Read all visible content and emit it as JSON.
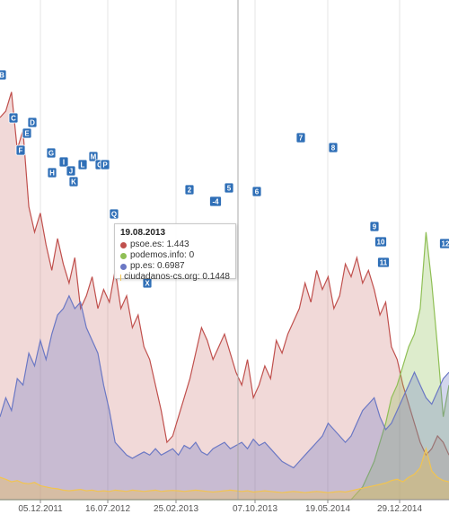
{
  "chart_data": {
    "type": "area",
    "title": "",
    "xlabel": "",
    "ylabel": "",
    "x_tick_labels": [
      "05.12.2011",
      "16.07.2012",
      "25.02.2013",
      "07.10.2013",
      "19.05.2014",
      "29.12.2014"
    ],
    "grid": "vertical",
    "crosshair_date": "19.08.2013",
    "series": [
      {
        "name": "psoe.es",
        "color": "#c0504d",
        "values": [
          6.0,
          6.1,
          6.4,
          5.5,
          5.8,
          4.6,
          4.2,
          4.5,
          4.0,
          3.6,
          4.1,
          3.7,
          3.4,
          3.8,
          3.0,
          3.2,
          3.5,
          3.0,
          3.3,
          3.1,
          3.6,
          3.0,
          3.2,
          2.7,
          2.9,
          2.4,
          2.2,
          1.8,
          1.4,
          0.9,
          1.0,
          1.3,
          1.6,
          1.9,
          2.3,
          2.7,
          2.5,
          2.2,
          2.4,
          2.6,
          2.3,
          2.0,
          1.8,
          2.2,
          1.6,
          1.8,
          2.1,
          1.9,
          2.5,
          2.3,
          2.6,
          2.8,
          3.0,
          3.4,
          3.1,
          3.6,
          3.3,
          3.5,
          3.0,
          3.2,
          3.7,
          3.5,
          3.8,
          3.4,
          3.6,
          3.3,
          2.9,
          3.1,
          2.4,
          2.2,
          1.8,
          1.5,
          1.2,
          0.9,
          0.7,
          0.8,
          1.0,
          0.9,
          0.7
        ]
      },
      {
        "name": "podemos.info",
        "color": "#8fbf55",
        "values": [
          0,
          0,
          0,
          0,
          0,
          0,
          0,
          0,
          0,
          0,
          0,
          0,
          0,
          0,
          0,
          0,
          0,
          0,
          0,
          0,
          0,
          0,
          0,
          0,
          0,
          0,
          0,
          0,
          0,
          0,
          0,
          0,
          0,
          0,
          0,
          0,
          0,
          0,
          0,
          0,
          0,
          0,
          0,
          0,
          0,
          0,
          0,
          0,
          0,
          0,
          0,
          0,
          0,
          0,
          0,
          0,
          0,
          0,
          0,
          0,
          0,
          0,
          0.1,
          0.2,
          0.4,
          0.6,
          0.9,
          1.2,
          1.6,
          1.8,
          2.1,
          2.4,
          2.6,
          3.0,
          4.2,
          3.4,
          2.4,
          1.3,
          1.8
        ]
      },
      {
        "name": "pp.es",
        "color": "#6b78c4",
        "values": [
          1.3,
          1.6,
          1.4,
          1.9,
          1.8,
          2.3,
          2.1,
          2.5,
          2.2,
          2.6,
          2.9,
          3.0,
          3.2,
          3.0,
          3.1,
          2.7,
          2.5,
          2.3,
          1.8,
          1.4,
          0.9,
          0.8,
          0.7,
          0.65,
          0.7,
          0.75,
          0.7,
          0.8,
          0.7,
          0.75,
          0.8,
          0.7,
          0.85,
          0.8,
          0.9,
          0.75,
          0.7,
          0.8,
          0.85,
          0.9,
          0.8,
          0.85,
          0.9,
          0.8,
          0.95,
          0.85,
          0.9,
          0.8,
          0.7,
          0.6,
          0.55,
          0.5,
          0.6,
          0.7,
          0.8,
          0.9,
          1.0,
          1.2,
          1.1,
          1.0,
          0.9,
          1.0,
          1.2,
          1.4,
          1.5,
          1.6,
          1.3,
          1.1,
          1.2,
          1.4,
          1.6,
          1.8,
          2.0,
          1.8,
          1.6,
          1.5,
          1.7,
          1.9,
          2.0
        ]
      },
      {
        "name": "ciudadanos-cs.org",
        "color": "#f2c44f",
        "values": [
          0.35,
          0.32,
          0.28,
          0.3,
          0.26,
          0.25,
          0.27,
          0.22,
          0.2,
          0.18,
          0.17,
          0.15,
          0.14,
          0.15,
          0.16,
          0.14,
          0.15,
          0.13,
          0.14,
          0.13,
          0.15,
          0.14,
          0.13,
          0.15,
          0.14,
          0.13,
          0.14,
          0.15,
          0.13,
          0.14,
          0.145,
          0.14,
          0.13,
          0.14,
          0.15,
          0.14,
          0.13,
          0.12,
          0.13,
          0.14,
          0.15,
          0.14,
          0.13,
          0.14,
          0.12,
          0.13,
          0.14,
          0.13,
          0.12,
          0.11,
          0.12,
          0.13,
          0.12,
          0.11,
          0.12,
          0.13,
          0.12,
          0.11,
          0.12,
          0.13,
          0.12,
          0.14,
          0.16,
          0.18,
          0.2,
          0.22,
          0.24,
          0.26,
          0.3,
          0.32,
          0.28,
          0.35,
          0.4,
          0.5,
          0.8,
          0.45,
          0.35,
          0.3,
          0.28
        ]
      }
    ],
    "y_scale": [
      0,
      7
    ],
    "flags": [
      "B",
      "C",
      "D",
      "E",
      "F",
      "G",
      "H",
      "I",
      "J",
      "K",
      "L",
      "M",
      "C",
      "P",
      "Q",
      "X",
      "2",
      "-4",
      "5",
      "6",
      "7",
      "8",
      "9",
      "10",
      "11",
      "12"
    ],
    "tooltip": {
      "date": "19.08.2013",
      "rows": [
        {
          "label": "psoe.es: 1.443",
          "color": "#c0504d"
        },
        {
          "label": "podemos.info: 0",
          "color": "#8fbf55"
        },
        {
          "label": "pp.es: 0.6987",
          "color": "#6b78c4"
        },
        {
          "label": "ciudadanos-cs.org: 0.1448",
          "color": "#f2c44f"
        }
      ]
    }
  }
}
